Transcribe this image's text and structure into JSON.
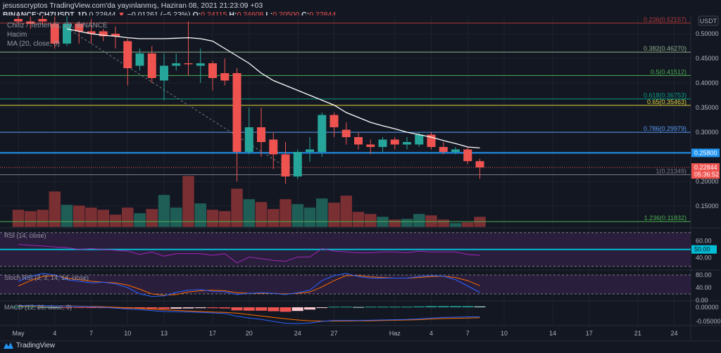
{
  "header": {
    "publisher_line": "jesusscryptos TradingView.com'da yayınlanmış, Haziran 08, 2021 21:23:09 +03",
    "symbol": "BINANCE:CHZUSDT, 1D",
    "last": "0.22844",
    "change_arrow": "▼",
    "change": "−0.01261 (−5.23%)",
    "o_label": "O:",
    "o": "0.24115",
    "h_label": "H:",
    "h": "0.24608",
    "l_label": "L:",
    "l": "0.20500",
    "c_label": "C:",
    "c": "0.22844"
  },
  "legend": {
    "title": "Chiliz / TetherUS, 1D, BINANCE",
    "volume": "Hacim",
    "ma": "MA (20, close, 0)"
  },
  "footer": {
    "brand": "TradingView"
  },
  "colors": {
    "up": "#26a69a",
    "down": "#ef5350",
    "ma": "#ffffff",
    "hline": "#2196f3",
    "rsi": "#9c27b0",
    "stoch_k": "#2962ff",
    "stoch_d": "#ff6d00",
    "macd": "#2962ff",
    "signal": "#ff6d00"
  },
  "chart_data": {
    "type": "candlestick",
    "currency_label": "USDT",
    "x_ticks": [
      "May",
      "4",
      "7",
      "10",
      "13",
      "17",
      "20",
      "24",
      "27",
      "Haz",
      "4",
      "7",
      "10",
      "14",
      "17",
      "21",
      "24"
    ],
    "x_tick_days": [
      0,
      3,
      6,
      9,
      12,
      16,
      19,
      23,
      26,
      31,
      34,
      37,
      40,
      44,
      47,
      51,
      54
    ],
    "y_ticks": [
      "0.50000",
      "0.45000",
      "0.40000",
      "0.35000",
      "0.30000",
      "0.20000",
      "0.15000"
    ],
    "y_tick_values": [
      0.5,
      0.45,
      0.4,
      0.35,
      0.3,
      0.2,
      0.15
    ],
    "ylim": [
      0.11,
      0.545
    ],
    "candles": [
      [
        0.53,
        0.54,
        0.52,
        0.525
      ],
      [
        0.525,
        0.535,
        0.51,
        0.52
      ],
      [
        0.53,
        0.54,
        0.52,
        0.525
      ],
      [
        0.52,
        0.535,
        0.47,
        0.48
      ],
      [
        0.48,
        0.535,
        0.475,
        0.52
      ],
      [
        0.52,
        0.525,
        0.48,
        0.505
      ],
      [
        0.505,
        0.53,
        0.48,
        0.5
      ],
      [
        0.505,
        0.51,
        0.485,
        0.495
      ],
      [
        0.5,
        0.515,
        0.47,
        0.495
      ],
      [
        0.485,
        0.49,
        0.395,
        0.43
      ],
      [
        0.435,
        0.47,
        0.425,
        0.46
      ],
      [
        0.46,
        0.475,
        0.4,
        0.41
      ],
      [
        0.405,
        0.46,
        0.365,
        0.435
      ],
      [
        0.435,
        0.46,
        0.425,
        0.44
      ],
      [
        0.44,
        0.525,
        0.415,
        0.438
      ],
      [
        0.435,
        0.47,
        0.4,
        0.44
      ],
      [
        0.44,
        0.445,
        0.385,
        0.41
      ],
      [
        0.42,
        0.45,
        0.395,
        0.405
      ],
      [
        0.42,
        0.43,
        0.2,
        0.26
      ],
      [
        0.26,
        0.35,
        0.255,
        0.31
      ],
      [
        0.31,
        0.35,
        0.25,
        0.28
      ],
      [
        0.285,
        0.3,
        0.225,
        0.255
      ],
      [
        0.255,
        0.28,
        0.195,
        0.21
      ],
      [
        0.21,
        0.265,
        0.205,
        0.26
      ],
      [
        0.26,
        0.29,
        0.24,
        0.265
      ],
      [
        0.26,
        0.34,
        0.25,
        0.335
      ],
      [
        0.335,
        0.34,
        0.29,
        0.31
      ],
      [
        0.305,
        0.32,
        0.275,
        0.29
      ],
      [
        0.29,
        0.3,
        0.265,
        0.275
      ],
      [
        0.275,
        0.285,
        0.255,
        0.27
      ],
      [
        0.27,
        0.29,
        0.26,
        0.285
      ],
      [
        0.285,
        0.29,
        0.265,
        0.275
      ],
      [
        0.275,
        0.29,
        0.265,
        0.28
      ],
      [
        0.275,
        0.3,
        0.27,
        0.295
      ],
      [
        0.295,
        0.3,
        0.265,
        0.27
      ],
      [
        0.27,
        0.28,
        0.255,
        0.26
      ],
      [
        0.26,
        0.27,
        0.255,
        0.265
      ],
      [
        0.265,
        0.27,
        0.235,
        0.24115
      ],
      [
        0.24115,
        0.24608,
        0.205,
        0.22844
      ]
    ],
    "volume_relative": [
      25,
      23,
      25,
      51,
      32,
      31,
      28,
      25,
      18,
      28,
      20,
      26,
      46,
      28,
      73,
      34,
      25,
      23,
      55,
      40,
      36,
      26,
      40,
      33,
      28,
      41,
      35,
      45,
      22,
      19,
      15,
      11,
      12,
      19,
      17,
      11,
      6,
      7,
      15
    ],
    "ma20": [
      null,
      null,
      null,
      null,
      0.51,
      0.505,
      0.5,
      0.497,
      0.495,
      0.492,
      0.49,
      0.49,
      0.49,
      0.491,
      0.492,
      0.49,
      0.485,
      0.47,
      0.455,
      0.44,
      0.42,
      0.405,
      0.395,
      0.385,
      0.375,
      0.365,
      0.355,
      0.34,
      0.33,
      0.32,
      0.313,
      0.307,
      0.3,
      0.295,
      0.29,
      0.283,
      0.277,
      0.27,
      0.268
    ],
    "fib_levels": [
      {
        "label": "0.236(0.52157)",
        "value": 0.52157,
        "color": "#b23a3a"
      },
      {
        "label": "0.382(0.46270)",
        "value": 0.4627,
        "color": "#8fae8b"
      },
      {
        "label": "0.5(0.41512)",
        "value": 0.41512,
        "color": "#4caf50"
      },
      {
        "label": "0.618(0.36753)",
        "value": 0.36753,
        "color": "#089981"
      },
      {
        "label": "0.65(0.35463)",
        "value": 0.35463,
        "color": "#e0d23a"
      },
      {
        "label": "0.786(0.29979)",
        "value": 0.29979,
        "color": "#5b9cf6"
      },
      {
        "label": "1(0.21349)",
        "value": 0.21349,
        "color": "#787b86"
      },
      {
        "label": "1.236(0.11832)",
        "value": 0.11832,
        "color": "#4caf50"
      }
    ],
    "horizontal_line": {
      "value": 0.258,
      "label": "0.25800"
    },
    "last_price": {
      "value": 0.22844,
      "label": "0.22844",
      "countdown": "05:36:52"
    },
    "rsi": {
      "title": "RSI (14, close)",
      "ticks": [
        "60.00",
        "40.00"
      ],
      "tick_values": [
        60,
        40
      ],
      "mid_label": "50.00",
      "mid": 50,
      "bands": [
        70,
        30
      ],
      "values": [
        56,
        55,
        54,
        53,
        52,
        50,
        51,
        50,
        49,
        48,
        44,
        47,
        42,
        45,
        45,
        45,
        43,
        45,
        34,
        41,
        39,
        37,
        36,
        41,
        41,
        51,
        48,
        47,
        46,
        46,
        47,
        47,
        46,
        48,
        47,
        47,
        47,
        44,
        43
      ]
    },
    "stoch_rsi": {
      "title": "Stoch RSI (3, 3, 14, 14, close)",
      "ticks": [
        "80.00",
        "40.00",
        "0.00"
      ],
      "tick_values": [
        80,
        40,
        0
      ],
      "bands": [
        80,
        20
      ],
      "k": [
        60,
        75,
        85,
        80,
        65,
        60,
        55,
        57,
        52,
        40,
        20,
        12,
        14,
        25,
        32,
        34,
        28,
        27,
        18,
        22,
        24,
        22,
        18,
        24,
        32,
        62,
        78,
        85,
        75,
        70,
        70,
        70,
        70,
        75,
        78,
        76,
        65,
        45,
        25
      ],
      "d": [
        45,
        62,
        75,
        78,
        70,
        65,
        60,
        57,
        55,
        48,
        35,
        20,
        16,
        18,
        26,
        30,
        32,
        30,
        24,
        22,
        22,
        22,
        20,
        22,
        26,
        42,
        62,
        78,
        78,
        74,
        72,
        70,
        70,
        72,
        75,
        76,
        72,
        62,
        46
      ]
    },
    "macd": {
      "title": "MACD (12, 26, close, 9)",
      "ticks": [
        "0.00000",
        "-0.05000"
      ],
      "tick_values": [
        0,
        -0.05
      ],
      "macd": [
        0.006,
        0.007,
        0.006,
        0.005,
        0.004,
        0.003,
        0.002,
        0.0,
        -0.003,
        -0.006,
        -0.008,
        -0.012,
        -0.015,
        -0.016,
        -0.017,
        -0.018,
        -0.02,
        -0.022,
        -0.032,
        -0.038,
        -0.043,
        -0.05,
        -0.057,
        -0.058,
        -0.056,
        -0.05,
        -0.047,
        -0.047,
        -0.047,
        -0.046,
        -0.045,
        -0.044,
        -0.043,
        -0.041,
        -0.038,
        -0.036,
        -0.035,
        -0.034,
        -0.034
      ],
      "signal": [
        0.004,
        0.005,
        0.005,
        0.005,
        0.005,
        0.004,
        0.003,
        0.002,
        0.0,
        -0.002,
        -0.004,
        -0.007,
        -0.009,
        -0.011,
        -0.013,
        -0.015,
        -0.017,
        -0.018,
        -0.021,
        -0.026,
        -0.031,
        -0.036,
        -0.041,
        -0.045,
        -0.048,
        -0.049,
        -0.049,
        -0.049,
        -0.048,
        -0.048,
        -0.047,
        -0.046,
        -0.045,
        -0.044,
        -0.042,
        -0.04,
        -0.039,
        -0.038,
        -0.037
      ],
      "hist": [
        0.002,
        0.002,
        0.001,
        0,
        -0.001,
        -0.001,
        -0.001,
        -0.002,
        -0.003,
        -0.004,
        -0.004,
        -0.005,
        -0.006,
        -0.005,
        -0.004,
        -0.003,
        -0.003,
        -0.004,
        -0.011,
        -0.012,
        -0.012,
        -0.014,
        -0.016,
        -0.013,
        -0.008,
        -0.001,
        0.002,
        0.002,
        0.001,
        0.002,
        0.002,
        0.002,
        0.002,
        0.003,
        0.004,
        0.004,
        0.004,
        0.004,
        0.003
      ]
    }
  }
}
